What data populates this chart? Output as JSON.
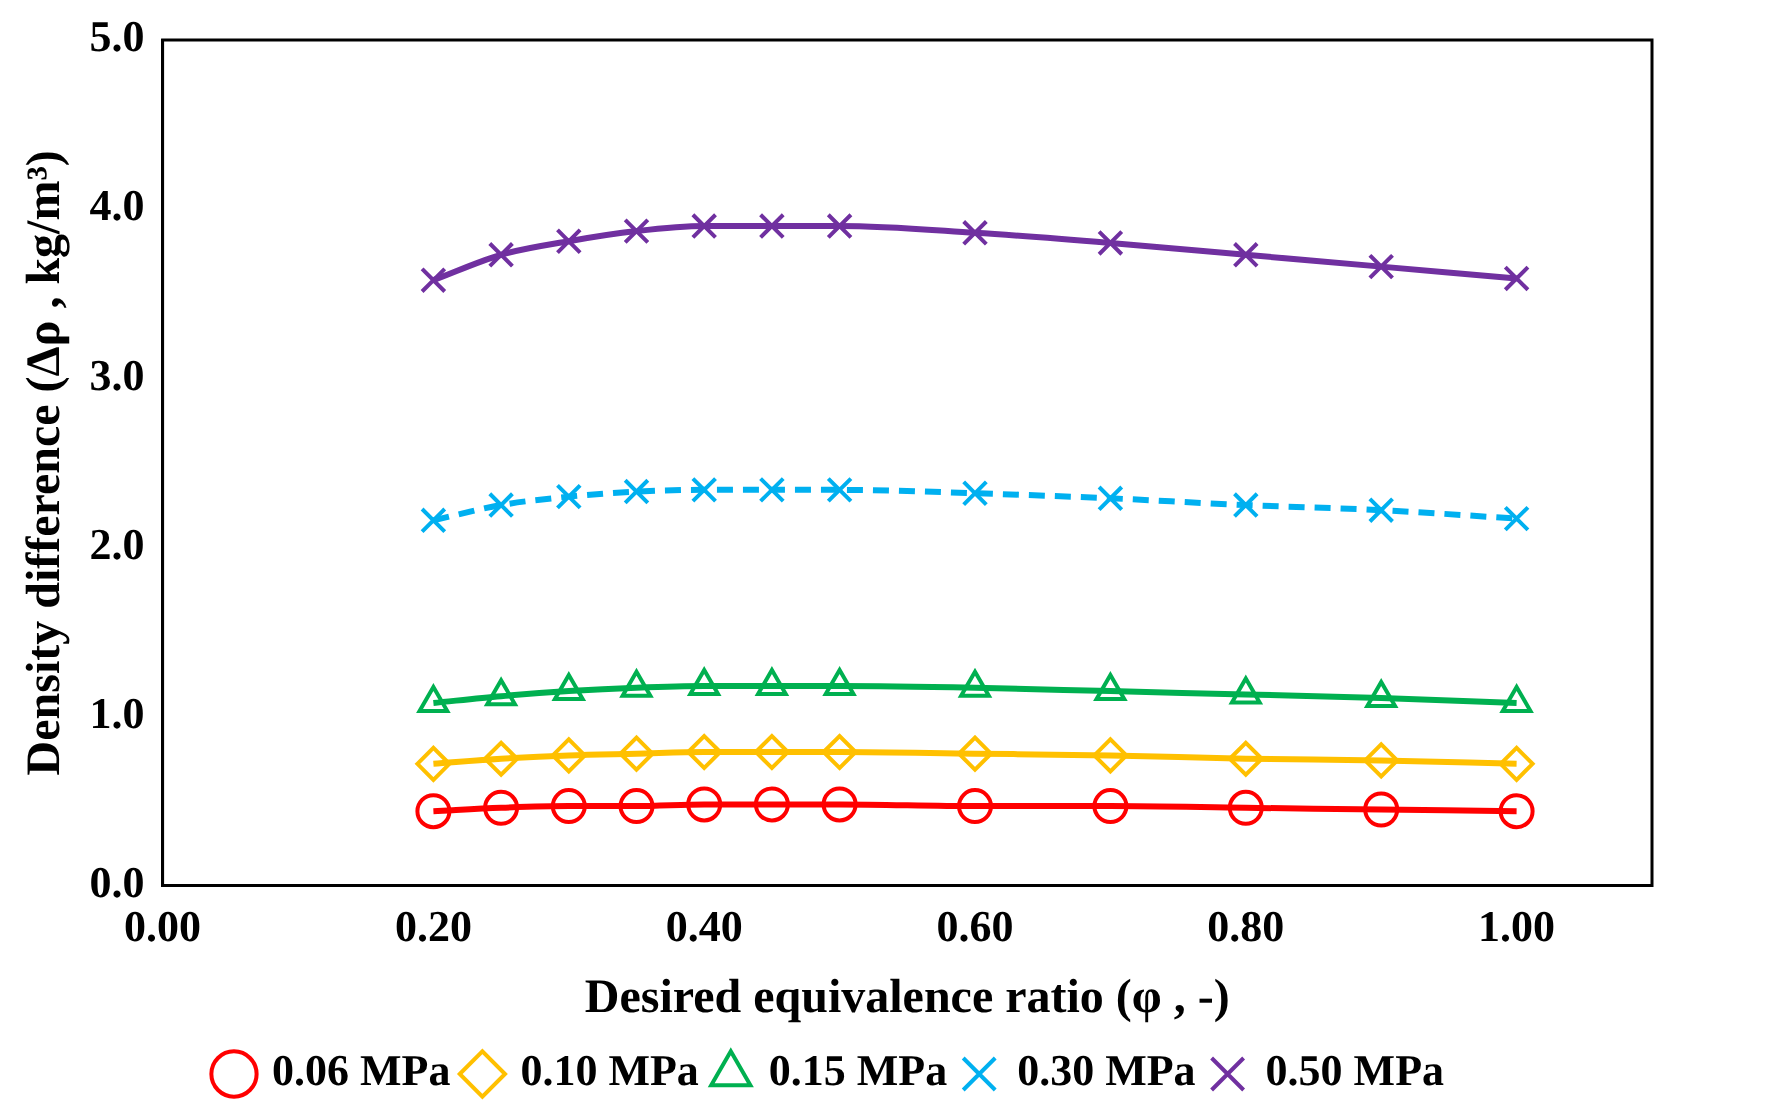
{
  "chart_data": {
    "type": "line",
    "xlabel": "Desired equivalence ratio (φ , -)",
    "ylabel": "Density difference (Δρ , kg/m³)",
    "x": [
      0.2,
      0.25,
      0.3,
      0.35,
      0.4,
      0.45,
      0.5,
      0.6,
      0.7,
      0.8,
      0.9,
      1.0
    ],
    "xlim": [
      0,
      1.1
    ],
    "xticks": [
      {
        "value": 0,
        "label": "0.00"
      },
      {
        "value": 0.2,
        "label": "0.20"
      },
      {
        "value": 0.4,
        "label": "0.40"
      },
      {
        "value": 0.6,
        "label": "0.60"
      },
      {
        "value": 0.8,
        "label": "0.80"
      },
      {
        "value": 1,
        "label": "1.00"
      }
    ],
    "ylim": [
      0,
      5
    ],
    "yticks": [
      {
        "value": 0,
        "label": "0.0"
      },
      {
        "value": 1,
        "label": "1.0"
      },
      {
        "value": 2,
        "label": "2.0"
      },
      {
        "value": 3,
        "label": "3.0"
      },
      {
        "value": 4,
        "label": "4.0"
      },
      {
        "value": 5,
        "label": "5.0"
      }
    ],
    "grid": false,
    "legend": "bottom",
    "series": [
      {
        "name": "0.06 MPa",
        "color": "#ff0000",
        "marker": "circle",
        "line_style": "solid",
        "values": [
          0.44,
          0.46,
          0.47,
          0.47,
          0.48,
          0.48,
          0.48,
          0.47,
          0.47,
          0.46,
          0.45,
          0.44
        ]
      },
      {
        "name": "0.10 MPa",
        "color": "#ffc000",
        "marker": "diamond",
        "line_style": "solid",
        "values": [
          0.72,
          0.75,
          0.77,
          0.78,
          0.79,
          0.79,
          0.79,
          0.78,
          0.77,
          0.75,
          0.74,
          0.72
        ]
      },
      {
        "name": "0.15 MPa",
        "color": "#00b050",
        "marker": "triangle",
        "line_style": "solid",
        "values": [
          1.08,
          1.12,
          1.15,
          1.17,
          1.18,
          1.18,
          1.18,
          1.17,
          1.15,
          1.13,
          1.11,
          1.08
        ]
      },
      {
        "name": "0.30 MPa",
        "color": "#00b0f0",
        "marker": "cross",
        "line_style": "dashed",
        "values": [
          2.16,
          2.25,
          2.3,
          2.33,
          2.34,
          2.34,
          2.34,
          2.32,
          2.29,
          2.25,
          2.22,
          2.17
        ]
      },
      {
        "name": "0.50 MPa",
        "color": "#7030a0",
        "marker": "cross",
        "line_style": "solid",
        "values": [
          3.58,
          3.73,
          3.81,
          3.87,
          3.9,
          3.9,
          3.9,
          3.86,
          3.8,
          3.73,
          3.66,
          3.59
        ]
      }
    ]
  }
}
